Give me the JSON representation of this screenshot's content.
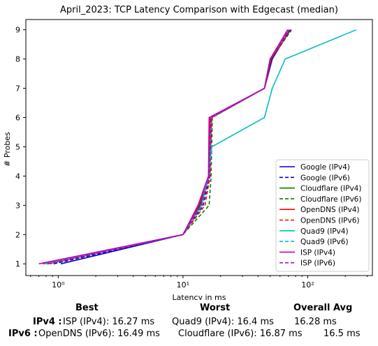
{
  "chart_data": {
    "type": "line",
    "title": "April_2023: TCP Latency Comparison with Edgecast (median)",
    "xlabel": "Latency in ms",
    "ylabel": "# Probes",
    "xscale": "log",
    "xlim": [
      0.55,
      330
    ],
    "ylim": [
      0.6,
      9.35
    ],
    "xticks": [
      1,
      10,
      100
    ],
    "xtick_labels": [
      "10⁰",
      "10¹",
      "10²"
    ],
    "yticks": [
      1,
      2,
      3,
      4,
      5,
      6,
      7,
      8,
      9
    ],
    "grid": false,
    "legend_position": "lower right",
    "series": [
      {
        "name": "Google (IPv4)",
        "color": "#0000cc",
        "dash": "solid",
        "points": [
          [
            1.05,
            1
          ],
          [
            10,
            2
          ],
          [
            13.5,
            3
          ],
          [
            16.3,
            4
          ],
          [
            16.6,
            5
          ],
          [
            16.8,
            6
          ],
          [
            45,
            7
          ],
          [
            52,
            8
          ],
          [
            72,
            9
          ]
        ]
      },
      {
        "name": "Google (IPv6)",
        "color": "#0000cc",
        "dash": "dashed",
        "points": [
          [
            0.92,
            1
          ],
          [
            10,
            2
          ],
          [
            14.5,
            3
          ],
          [
            16.4,
            4
          ],
          [
            16.6,
            5
          ],
          [
            16.9,
            6
          ],
          [
            45,
            7
          ],
          [
            51,
            8
          ],
          [
            74,
            9
          ]
        ]
      },
      {
        "name": "Cloudflare (IPv4)",
        "color": "#008000",
        "dash": "solid",
        "points": [
          [
            0.8,
            1
          ],
          [
            10,
            2
          ],
          [
            13.8,
            3
          ],
          [
            16.2,
            4
          ],
          [
            16.4,
            5
          ],
          [
            16.6,
            6
          ],
          [
            45,
            7
          ],
          [
            50,
            8
          ],
          [
            70,
            9
          ]
        ]
      },
      {
        "name": "Cloudflare (IPv6)",
        "color": "#008000",
        "dash": "dashed",
        "points": [
          [
            0.82,
            1
          ],
          [
            10,
            2
          ],
          [
            16.2,
            3
          ],
          [
            16.8,
            4
          ],
          [
            17,
            5
          ],
          [
            17.2,
            6
          ],
          [
            45,
            7
          ],
          [
            51,
            8
          ],
          [
            73,
            9
          ]
        ]
      },
      {
        "name": "OpenDNS (IPv4)",
        "color": "#ff0000",
        "dash": "solid",
        "points": [
          [
            0.75,
            1
          ],
          [
            10,
            2
          ],
          [
            13.4,
            3
          ],
          [
            16.1,
            4
          ],
          [
            16.3,
            5
          ],
          [
            16.5,
            6
          ],
          [
            45,
            7
          ],
          [
            50,
            8
          ],
          [
            70,
            9
          ]
        ]
      },
      {
        "name": "OpenDNS (IPv6)",
        "color": "#ff0000",
        "dash": "dashed",
        "points": [
          [
            0.85,
            1
          ],
          [
            10,
            2
          ],
          [
            15,
            3
          ],
          [
            16.5,
            4
          ],
          [
            16.7,
            5
          ],
          [
            17,
            6
          ],
          [
            45,
            7
          ],
          [
            51,
            8
          ],
          [
            73,
            9
          ]
        ]
      },
      {
        "name": "Quad9 (IPv4)",
        "color": "#00bfbf",
        "dash": "solid",
        "points": [
          [
            0.78,
            1
          ],
          [
            10,
            2
          ],
          [
            14,
            3
          ],
          [
            16,
            4
          ],
          [
            17,
            5
          ],
          [
            45,
            6
          ],
          [
            52,
            7
          ],
          [
            66,
            8
          ],
          [
            245,
            9
          ]
        ]
      },
      {
        "name": "Quad9 (IPv6)",
        "color": "#00bfbf",
        "dash": "dashed",
        "points": [
          [
            0.8,
            1
          ],
          [
            10,
            2
          ],
          [
            14.2,
            3
          ],
          [
            16.2,
            4
          ],
          [
            16.5,
            5
          ],
          [
            16.8,
            6
          ],
          [
            45,
            7
          ],
          [
            50,
            8
          ],
          [
            70,
            9
          ]
        ]
      },
      {
        "name": "ISP (IPv4)",
        "color": "#bf00bf",
        "dash": "solid",
        "points": [
          [
            0.7,
            1
          ],
          [
            10,
            2
          ],
          [
            13.2,
            3
          ],
          [
            16,
            4
          ],
          [
            16.1,
            5
          ],
          [
            16.2,
            6
          ],
          [
            45,
            7
          ],
          [
            50,
            8
          ],
          [
            69,
            9
          ]
        ]
      },
      {
        "name": "ISP (IPv6)",
        "color": "#bf00bf",
        "dash": "dashed",
        "points": [
          [
            0.82,
            1
          ],
          [
            10,
            2
          ],
          [
            14,
            3
          ],
          [
            16.3,
            4
          ],
          [
            16.5,
            5
          ],
          [
            16.8,
            6
          ],
          [
            45,
            7
          ],
          [
            50,
            8
          ],
          [
            71,
            9
          ]
        ]
      }
    ]
  },
  "summary": {
    "headers": {
      "best": "Best",
      "worst": "Worst",
      "avg": "Overall Avg"
    },
    "rows": [
      {
        "label": "IPv4 :",
        "best": "ISP (IPv4): 16.27 ms",
        "worst": "Quad9 (IPv4): 16.4 ms",
        "avg": "16.28 ms"
      },
      {
        "label": "IPv6 :",
        "best": "OpenDNS (IPv6): 16.49 ms",
        "worst": "Cloudflare (IPv6): 16.87 ms",
        "avg": "16.5 ms"
      }
    ]
  }
}
